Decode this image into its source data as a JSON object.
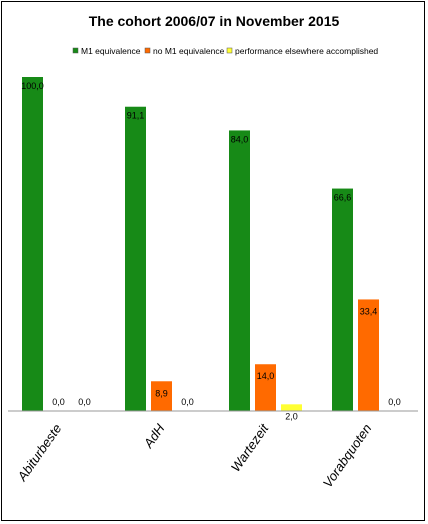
{
  "chart_data": {
    "type": "bar",
    "title": "The cohort 2006/07 in November 2015",
    "categories": [
      "Abiturbeste",
      "AdH",
      "Wartezeit",
      "Vorabquoten"
    ],
    "series": [
      {
        "name": "M1 equivalence",
        "color": "#178a17",
        "values": [
          100.0,
          91.1,
          84.0,
          66.6
        ],
        "labels": [
          "100,0",
          "91,1",
          "84,0",
          "66,6"
        ]
      },
      {
        "name": "no M1 equivalence",
        "color": "#ff6a00",
        "values": [
          0.0,
          8.9,
          14.0,
          33.4
        ],
        "labels": [
          "0,0",
          "8,9",
          "14,0",
          "33,4"
        ]
      },
      {
        "name": "performance elsewhere accomplished",
        "color": "#ffff33",
        "values": [
          0.0,
          0.0,
          2.0,
          0.0
        ],
        "labels": [
          "0,0",
          "0,0",
          "2,0",
          "0,0"
        ]
      }
    ],
    "ylim": [
      0,
      100
    ],
    "legend_position": "top",
    "grid": false
  }
}
